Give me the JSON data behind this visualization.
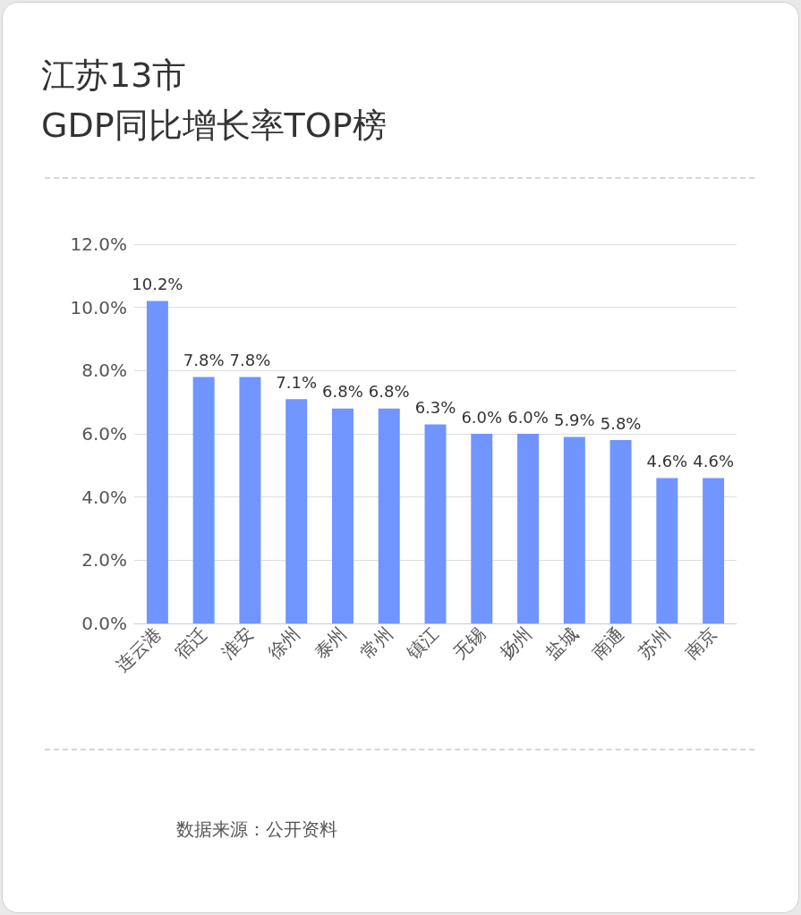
{
  "chart_data": {
    "type": "bar",
    "title": "江苏13市\nGDP同比增长率TOP榜",
    "categories": [
      "连云港",
      "宿迁",
      "淮安",
      "徐州",
      "泰州",
      "常州",
      "镇江",
      "无锡",
      "扬州",
      "盐城",
      "南通",
      "苏州",
      "南京"
    ],
    "values": [
      10.2,
      7.8,
      7.8,
      7.1,
      6.8,
      6.8,
      6.3,
      6.0,
      6.0,
      5.9,
      5.8,
      4.6,
      4.6
    ],
    "value_labels": [
      "10.2%",
      "7.8%",
      "7.8%",
      "7.1%",
      "6.8%",
      "6.8%",
      "6.3%",
      "6.0%",
      "6.0%",
      "5.9%",
      "5.8%",
      "4.6%",
      "4.6%"
    ],
    "color": "#7095ff",
    "ylim": [
      0,
      12
    ],
    "yticks": [
      {
        "value": 0,
        "label": "0.0%"
      },
      {
        "value": 2,
        "label": "2.0%"
      },
      {
        "value": 4,
        "label": "4.0%"
      },
      {
        "value": 6,
        "label": "6.0%"
      },
      {
        "value": 8,
        "label": "8.0%"
      },
      {
        "value": 10,
        "label": "10.0%"
      },
      {
        "value": 12,
        "label": "12.0%"
      }
    ],
    "grid": "y",
    "annotations": [
      "数据来源：公开资料"
    ]
  }
}
